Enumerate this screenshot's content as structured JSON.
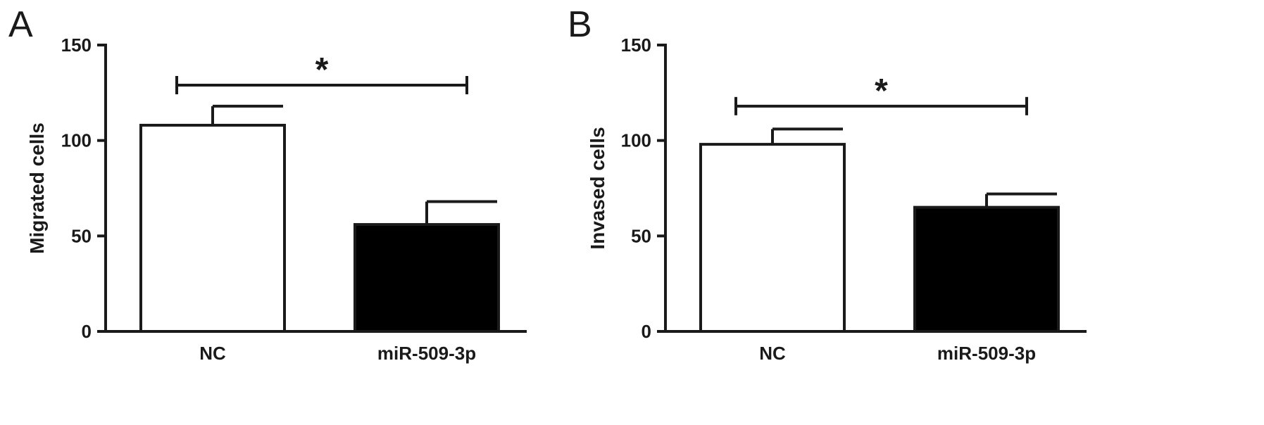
{
  "chart_data": [
    {
      "type": "bar",
      "panel_label": "A",
      "categories": [
        "NC",
        "miR-509-3p"
      ],
      "values": [
        108,
        56
      ],
      "errors": [
        10,
        12
      ],
      "bar_fills": [
        "#ffffff",
        "#000000"
      ],
      "ylabel": "Migrated cells",
      "xlabel": "",
      "ylim": [
        0,
        150
      ],
      "yticks": [
        0,
        50,
        100,
        150
      ],
      "grid": false,
      "significance": {
        "label": "*",
        "between": [
          0,
          1
        ],
        "y": 129
      }
    },
    {
      "type": "bar",
      "panel_label": "B",
      "categories": [
        "NC",
        "miR-509-3p"
      ],
      "values": [
        98,
        65
      ],
      "errors": [
        8,
        7
      ],
      "bar_fills": [
        "#ffffff",
        "#000000"
      ],
      "ylabel": "Invased cells",
      "xlabel": "",
      "ylim": [
        0,
        150
      ],
      "yticks": [
        0,
        50,
        100,
        150
      ],
      "grid": false,
      "significance": {
        "label": "*",
        "between": [
          0,
          1
        ],
        "y": 118
      }
    }
  ]
}
